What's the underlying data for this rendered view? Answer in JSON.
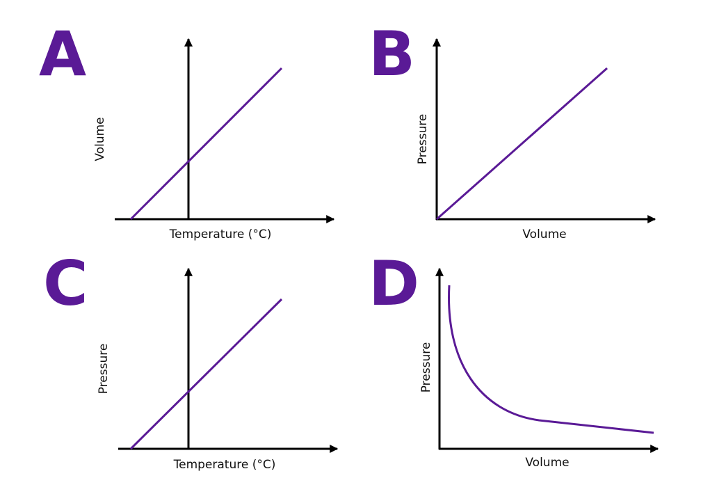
{
  "panels": [
    {
      "letter": "A",
      "x_label": "Temperature (°C)",
      "y_label": "Volume"
    },
    {
      "letter": "B",
      "x_label": "Volume",
      "y_label": "Pressure"
    },
    {
      "letter": "C",
      "x_label": "Temperature (°C)",
      "y_label": "Pressure"
    },
    {
      "letter": "D",
      "x_label": "Volume",
      "y_label": "Pressure"
    }
  ]
}
